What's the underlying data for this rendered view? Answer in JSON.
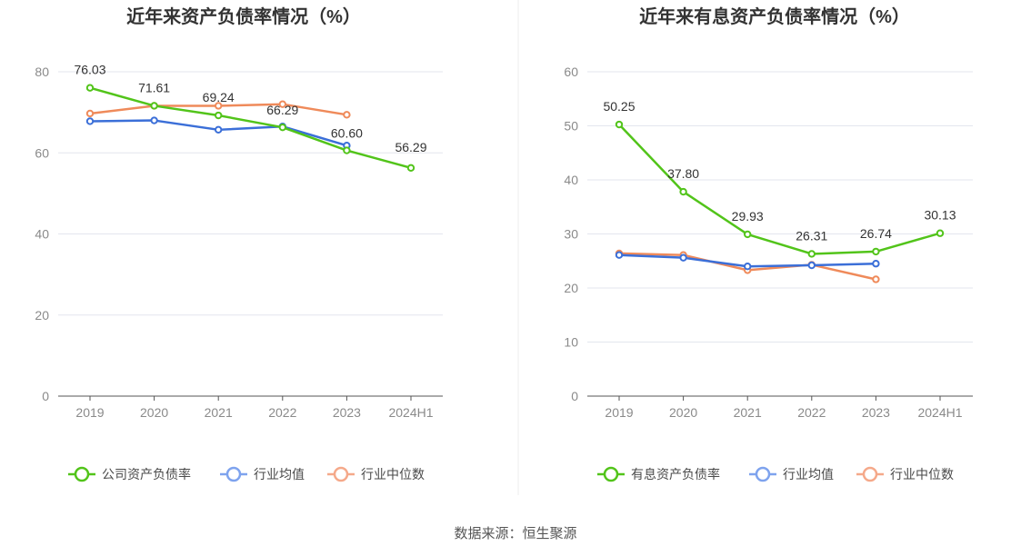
{
  "source": "数据来源：恒生聚源",
  "colors": {
    "company": "#52c41a",
    "industry_avg": "#3b6fd8",
    "industry_median": "#ef8a5a",
    "legend_avg": "#7ea3ee",
    "legend_median": "#f5a98a",
    "grid": "#e3e6ee",
    "axis": "#555555"
  },
  "chart_data": [
    {
      "type": "line",
      "title": "近年来资产负债率情况（%）",
      "categories": [
        "2019",
        "2020",
        "2021",
        "2022",
        "2023",
        "2024H1"
      ],
      "ylim": [
        0,
        80
      ],
      "yticks": [
        0,
        20,
        40,
        60,
        80
      ],
      "grid": true,
      "legend_position": "bottom",
      "series": [
        {
          "name": "公司资产负债率",
          "color_key": "company",
          "values": [
            76.03,
            71.61,
            69.24,
            66.29,
            60.6,
            56.29
          ],
          "labels": [
            "76.03",
            "71.61",
            "69.24",
            "66.29",
            "60.60",
            "56.29"
          ]
        },
        {
          "name": "行业均值",
          "color_key": "industry_avg",
          "values": [
            67.8,
            68.0,
            65.7,
            66.5,
            61.8,
            null
          ]
        },
        {
          "name": "行业中位数",
          "color_key": "industry_median",
          "values": [
            69.7,
            71.6,
            71.6,
            72.0,
            69.4,
            null
          ]
        }
      ]
    },
    {
      "type": "line",
      "title": "近年来有息资产负债率情况（%）",
      "categories": [
        "2019",
        "2020",
        "2021",
        "2022",
        "2023",
        "2024H1"
      ],
      "ylim": [
        0,
        60
      ],
      "yticks": [
        0,
        10,
        20,
        30,
        40,
        50,
        60
      ],
      "grid": true,
      "legend_position": "bottom",
      "series": [
        {
          "name": "有息资产负债率",
          "color_key": "company",
          "values": [
            50.25,
            37.8,
            29.93,
            26.31,
            26.74,
            30.13
          ],
          "labels": [
            "50.25",
            "37.80",
            "29.93",
            "26.31",
            "26.74",
            "30.13"
          ]
        },
        {
          "name": "行业均值",
          "color_key": "industry_avg",
          "values": [
            26.1,
            25.6,
            24.0,
            24.2,
            24.5,
            null
          ]
        },
        {
          "name": "行业中位数",
          "color_key": "industry_median",
          "values": [
            26.4,
            26.1,
            23.3,
            24.3,
            21.6,
            null
          ]
        }
      ]
    }
  ]
}
